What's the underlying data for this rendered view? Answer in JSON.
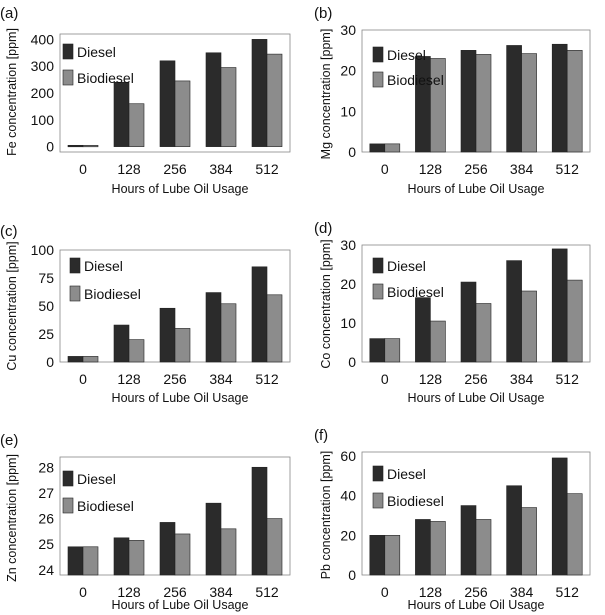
{
  "colors": {
    "diesel": "#2b2b2b",
    "biodiesel": "#8c8c8c",
    "background": "#ffffff",
    "text": "#111111"
  },
  "chart_data": [
    {
      "panel": "(a)",
      "type": "bar",
      "categories": [
        "0",
        "128",
        "256",
        "384",
        "512"
      ],
      "series": [
        {
          "name": "Diesel",
          "values": [
            5,
            240,
            320,
            350,
            400
          ]
        },
        {
          "name": "Biodiesel",
          "values": [
            5,
            160,
            245,
            295,
            345
          ]
        }
      ],
      "ylabel": "Fe concentration [ppm]",
      "xlabel": "Hours of Lube Oil Usage",
      "ylim": [
        -20,
        420
      ],
      "yticks": [
        0,
        100,
        200,
        300,
        400
      ],
      "legend_names": [
        "Diesel",
        "Biodiesel"
      ]
    },
    {
      "panel": "(b)",
      "type": "bar",
      "categories": [
        "0",
        "128",
        "256",
        "384",
        "512"
      ],
      "series": [
        {
          "name": "Diesel",
          "values": [
            2,
            23.5,
            25,
            26.2,
            26.5
          ]
        },
        {
          "name": "Biodiesel",
          "values": [
            2,
            23,
            24,
            24.2,
            25
          ]
        }
      ],
      "ylabel": "Mg concentration [ppm]",
      "xlabel": "Hours of Lube Oil Usage",
      "ylim": [
        0,
        30
      ],
      "yticks": [
        0,
        10,
        20,
        30
      ],
      "legend_names": [
        "Diesel",
        "Biodiesel"
      ]
    },
    {
      "panel": "(c)",
      "type": "bar",
      "categories": [
        "0",
        "128",
        "256",
        "384",
        "512"
      ],
      "series": [
        {
          "name": "Diesel",
          "values": [
            5,
            33,
            48,
            62,
            85
          ]
        },
        {
          "name": "Biodiesel",
          "values": [
            5,
            20,
            30,
            52,
            60
          ]
        }
      ],
      "ylabel": "Cu concentration [ppm]",
      "xlabel": "Hours of Lube Oil Usage",
      "ylim": [
        0,
        100
      ],
      "yticks": [
        0,
        25,
        50,
        75,
        100
      ],
      "legend_names": [
        "Diesel",
        "Biodiesel"
      ]
    },
    {
      "panel": "(d)",
      "type": "bar",
      "categories": [
        "0",
        "128",
        "256",
        "384",
        "512"
      ],
      "series": [
        {
          "name": "Diesel",
          "values": [
            6,
            16.5,
            20.5,
            26,
            29
          ]
        },
        {
          "name": "Biodiesel",
          "values": [
            6,
            10.5,
            15,
            18.2,
            21
          ]
        }
      ],
      "ylabel": "Co concentration [ppm]",
      "xlabel": "Hours of Lube Oil Usage",
      "ylim": [
        0,
        30
      ],
      "yticks": [
        0,
        10,
        20,
        30
      ],
      "legend_names": [
        "Diesel",
        "Biodiesel"
      ]
    },
    {
      "panel": "(e)",
      "type": "bar",
      "categories": [
        "0",
        "128",
        "256",
        "384",
        "512"
      ],
      "series": [
        {
          "name": "Diesel",
          "values": [
            24.9,
            25.25,
            25.85,
            26.6,
            28
          ]
        },
        {
          "name": "Biodiesel",
          "values": [
            24.9,
            25.15,
            25.4,
            25.6,
            26
          ]
        }
      ],
      "ylabel": "Zn concentration [ppm]",
      "xlabel": "Hours of Lube Oil Usage",
      "ylim": [
        23.8,
        28.4
      ],
      "yticks": [
        24,
        25,
        26,
        27,
        28
      ],
      "legend_names": [
        "Diesel",
        "Biodiesel"
      ]
    },
    {
      "panel": "(f)",
      "type": "bar",
      "categories": [
        "0",
        "128",
        "256",
        "384",
        "512"
      ],
      "series": [
        {
          "name": "Diesel",
          "values": [
            20,
            28,
            35,
            45,
            59
          ]
        },
        {
          "name": "Biodiesel",
          "values": [
            20,
            27,
            28,
            34,
            41
          ]
        }
      ],
      "ylabel": "Pb concentration [ppm]",
      "xlabel": "Hours of Lube Oil Usage",
      "ylim": [
        0,
        62
      ],
      "yticks": [
        0,
        20,
        40,
        60
      ],
      "legend_names": [
        "Diesel",
        "Biodiesel"
      ]
    }
  ]
}
